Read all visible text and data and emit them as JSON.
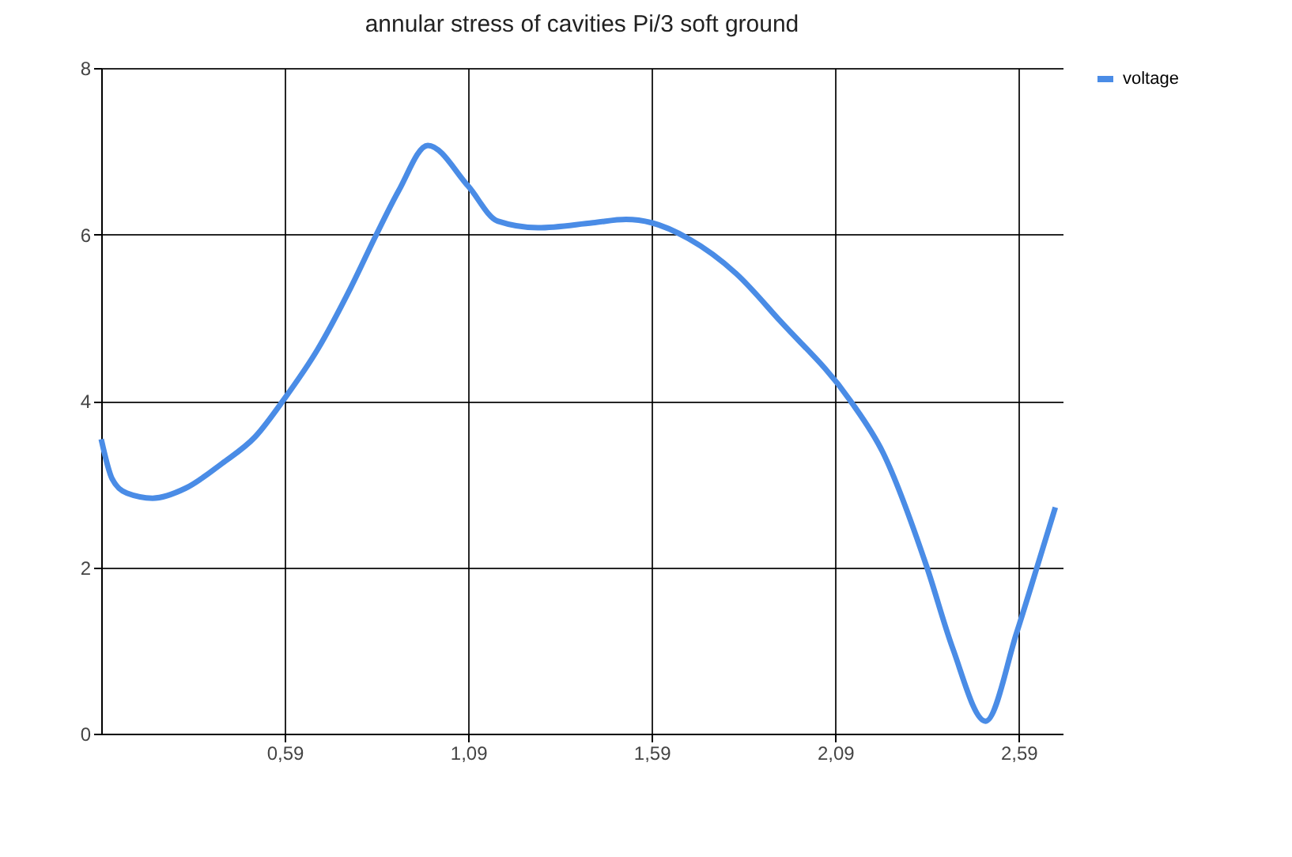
{
  "chart_data": {
    "type": "line",
    "title": "annular stress of cavities Pi/3 soft ground",
    "x": [
      0.09,
      0.12,
      0.16,
      0.23,
      0.32,
      0.42,
      0.51,
      0.59,
      0.68,
      0.77,
      0.84,
      0.9,
      0.98,
      1.09,
      1.17,
      1.28,
      1.43,
      1.52,
      1.59,
      1.69,
      1.82,
      1.94,
      2.13,
      2.22,
      2.34,
      2.41,
      2.5,
      2.585,
      2.64,
      2.69
    ],
    "series": [
      {
        "name": "voltage",
        "color": "#4a8ce6",
        "values": [
          3.54,
          3.06,
          2.89,
          2.83,
          2.95,
          3.25,
          3.57,
          4.03,
          4.62,
          5.36,
          6.0,
          6.52,
          7.07,
          6.58,
          6.16,
          6.08,
          6.14,
          6.18,
          6.14,
          5.95,
          5.53,
          4.96,
          4.01,
          3.38,
          2.0,
          1.03,
          0.15,
          1.22,
          2.0,
          2.72
        ]
      }
    ],
    "xlim": [
      0.09,
      2.71
    ],
    "xticks": [
      {
        "value": 0.59,
        "label": "0,59"
      },
      {
        "value": 1.09,
        "label": "1,09"
      },
      {
        "value": 1.59,
        "label": "1,59"
      },
      {
        "value": 2.09,
        "label": "2,09"
      },
      {
        "value": 2.59,
        "label": "2,59"
      }
    ],
    "ylim": [
      0,
      8
    ],
    "yticks": [
      0,
      2,
      4,
      6,
      8
    ],
    "grid": true,
    "legend": "top right",
    "marker": "none",
    "line_style": "solid"
  }
}
